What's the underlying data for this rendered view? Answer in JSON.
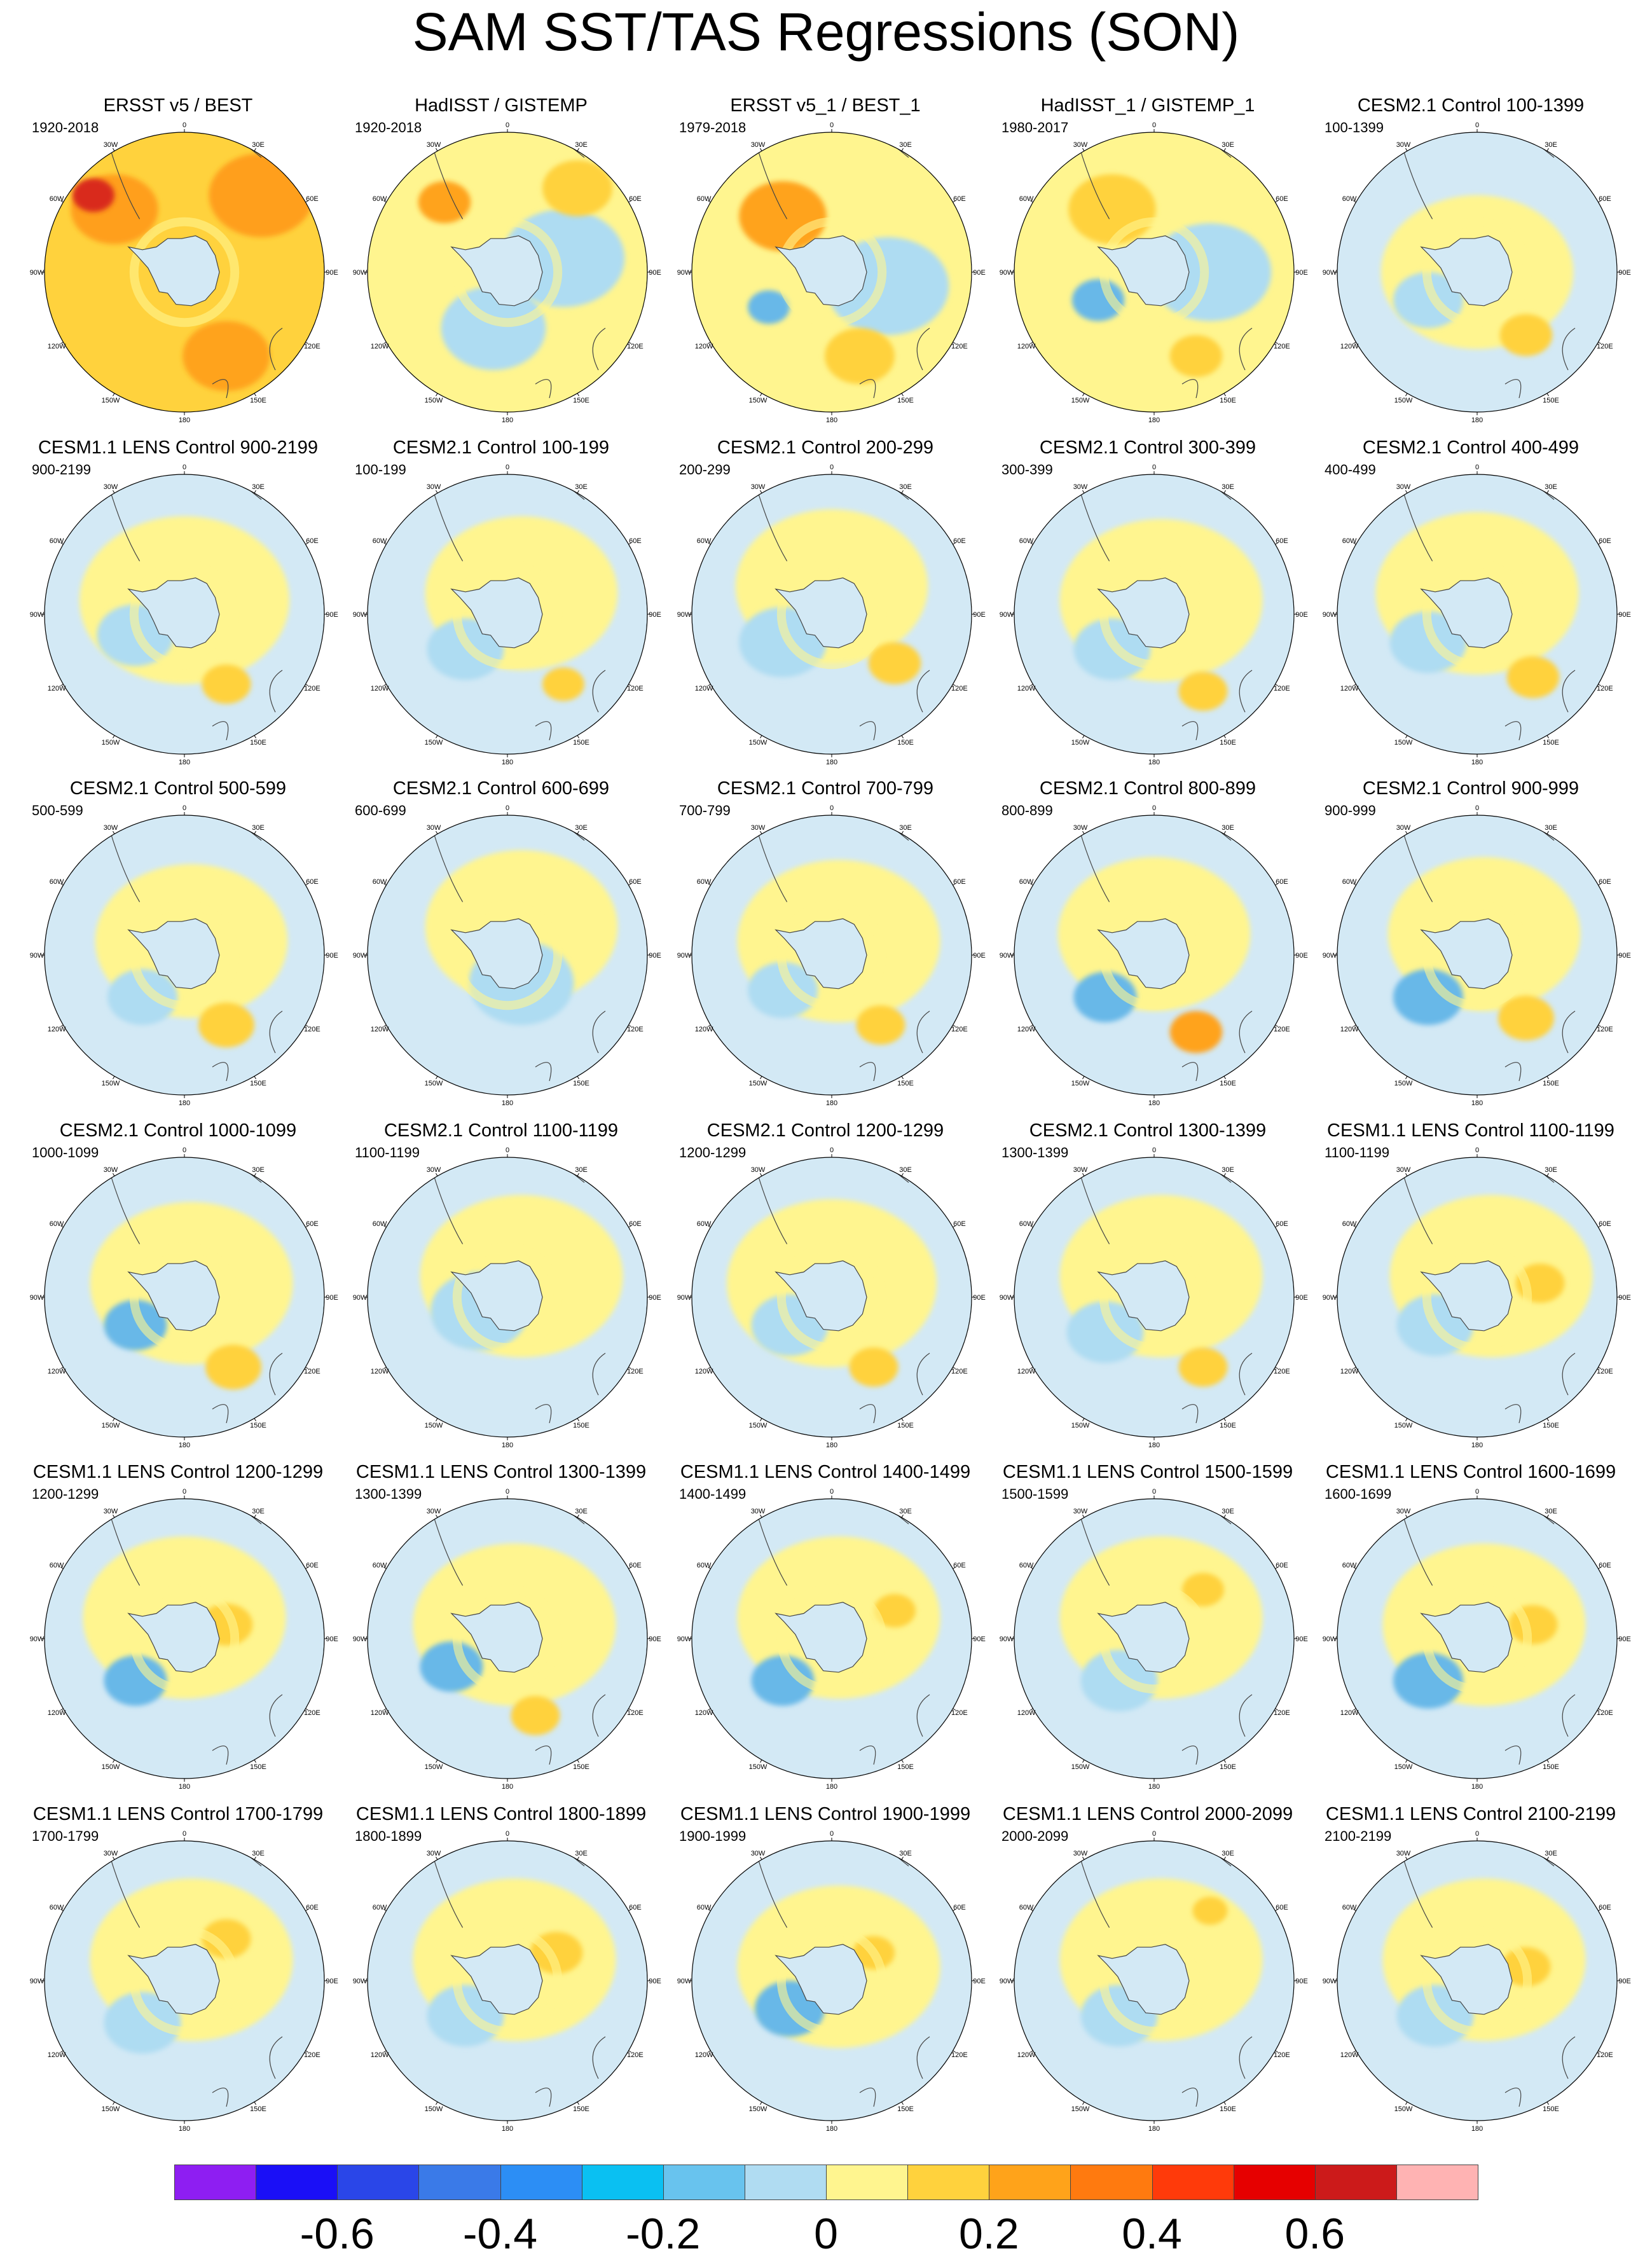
{
  "title": "SAM SST/TAS Regressions (SON)",
  "longitude_labels": [
    "0",
    "30E",
    "60E",
    "90E",
    "120E",
    "150E",
    "180",
    "150W",
    "120W",
    "90W",
    "60W",
    "30W"
  ],
  "colors": {
    "land": "#d3e9f5",
    "coast": "#444444"
  },
  "panels": [
    {
      "title": "ERSST v5 / BEST",
      "period": "1920-2018",
      "base": "#ffd23d",
      "blobs": [
        [
          "#ff9f1a",
          0.55,
          0.55,
          0.3
        ],
        [
          "#ff9f1a",
          -0.5,
          0.45,
          0.25
        ],
        [
          "#d92c1a",
          -0.65,
          0.55,
          0.12
        ],
        [
          "#ffa31a",
          0.3,
          -0.6,
          0.25
        ]
      ]
    },
    {
      "title": "HadISST / GISTEMP",
      "period": "1920-2018",
      "base": "#fff58f",
      "blobs": [
        [
          "#aedcf2",
          0.4,
          0.1,
          0.35
        ],
        [
          "#ffa31a",
          -0.45,
          0.5,
          0.15
        ],
        [
          "#aedcf2",
          -0.1,
          -0.4,
          0.3
        ],
        [
          "#ffd23d",
          0.5,
          0.6,
          0.2
        ]
      ]
    },
    {
      "title": "ERSST v5_1 / BEST_1",
      "period": "1979-2018",
      "base": "#fff58f",
      "blobs": [
        [
          "#ffa31a",
          -0.35,
          0.4,
          0.25
        ],
        [
          "#aedcf2",
          0.4,
          -0.1,
          0.35
        ],
        [
          "#68b8e8",
          -0.45,
          -0.25,
          0.12
        ],
        [
          "#ffd23d",
          0.2,
          -0.6,
          0.2
        ]
      ]
    },
    {
      "title": "HadISST_1 / GISTEMP_1",
      "period": "1980-2017",
      "base": "#fff58f",
      "blobs": [
        [
          "#ffd23d",
          -0.3,
          0.45,
          0.25
        ],
        [
          "#aedcf2",
          0.4,
          0.0,
          0.35
        ],
        [
          "#68b8e8",
          -0.4,
          -0.2,
          0.15
        ],
        [
          "#ffd23d",
          0.3,
          -0.6,
          0.15
        ]
      ]
    },
    {
      "title": "CESM2.1 Control 100-1399",
      "period": "100-1399",
      "base": "#d3e9f5",
      "blobs": [
        [
          "#fff58f",
          0.0,
          0.0,
          0.55
        ],
        [
          "#aedcf2",
          -0.35,
          -0.2,
          0.2
        ],
        [
          "#ffd23d",
          0.35,
          -0.45,
          0.15
        ]
      ]
    },
    {
      "title": "CESM1.1 LENS Control 900-2199",
      "period": "900-2199",
      "base": "#d3e9f5",
      "blobs": [
        [
          "#fff58f",
          0.0,
          0.1,
          0.6
        ],
        [
          "#aedcf2",
          -0.35,
          -0.15,
          0.22
        ],
        [
          "#ffd23d",
          0.3,
          -0.5,
          0.14
        ]
      ]
    },
    {
      "title": "CESM2.1 Control 100-199",
      "period": "100-199",
      "base": "#d3e9f5",
      "blobs": [
        [
          "#fff58f",
          0.1,
          0.15,
          0.55
        ],
        [
          "#aedcf2",
          -0.3,
          -0.25,
          0.22
        ],
        [
          "#ffd23d",
          0.4,
          -0.5,
          0.12
        ]
      ]
    },
    {
      "title": "CESM2.1 Control 200-299",
      "period": "200-299",
      "base": "#d3e9f5",
      "blobs": [
        [
          "#fff58f",
          0.0,
          0.2,
          0.55
        ],
        [
          "#aedcf2",
          -0.35,
          -0.2,
          0.25
        ],
        [
          "#ffd23d",
          0.45,
          -0.35,
          0.15
        ]
      ]
    },
    {
      "title": "CESM2.1 Control 300-399",
      "period": "300-399",
      "base": "#d3e9f5",
      "blobs": [
        [
          "#fff58f",
          0.05,
          0.1,
          0.58
        ],
        [
          "#aedcf2",
          -0.3,
          -0.25,
          0.22
        ],
        [
          "#ffd23d",
          0.35,
          -0.55,
          0.14
        ]
      ]
    },
    {
      "title": "CESM2.1 Control 400-499",
      "period": "400-499",
      "base": "#d3e9f5",
      "blobs": [
        [
          "#fff58f",
          0.0,
          0.15,
          0.58
        ],
        [
          "#aedcf2",
          -0.35,
          -0.2,
          0.22
        ],
        [
          "#ffd23d",
          0.4,
          -0.45,
          0.15
        ]
      ]
    },
    {
      "title": "CESM2.1 Control 500-599",
      "period": "500-599",
      "base": "#d3e9f5",
      "blobs": [
        [
          "#fff58f",
          0.05,
          0.1,
          0.55
        ],
        [
          "#aedcf2",
          -0.3,
          -0.3,
          0.2
        ],
        [
          "#ffd23d",
          0.3,
          -0.5,
          0.16
        ]
      ]
    },
    {
      "title": "CESM2.1 Control 600-699",
      "period": "600-699",
      "base": "#d3e9f5",
      "blobs": [
        [
          "#fff58f",
          0.1,
          0.2,
          0.55
        ],
        [
          "#aedcf2",
          0.1,
          -0.2,
          0.3
        ]
      ]
    },
    {
      "title": "CESM2.1 Control 700-799",
      "period": "700-799",
      "base": "#d3e9f5",
      "blobs": [
        [
          "#fff58f",
          0.05,
          0.1,
          0.58
        ],
        [
          "#aedcf2",
          -0.35,
          -0.25,
          0.2
        ],
        [
          "#ffd23d",
          0.35,
          -0.5,
          0.14
        ]
      ]
    },
    {
      "title": "CESM2.1 Control 800-899",
      "period": "800-899",
      "base": "#d3e9f5",
      "blobs": [
        [
          "#fff58f",
          0.0,
          0.15,
          0.55
        ],
        [
          "#68b8e8",
          -0.35,
          -0.3,
          0.18
        ],
        [
          "#ffa31a",
          0.3,
          -0.55,
          0.15
        ]
      ]
    },
    {
      "title": "CESM2.1 Control 900-999",
      "period": "900-999",
      "base": "#d3e9f5",
      "blobs": [
        [
          "#fff58f",
          0.05,
          0.15,
          0.55
        ],
        [
          "#68b8e8",
          -0.35,
          -0.3,
          0.2
        ],
        [
          "#ffd23d",
          0.35,
          -0.45,
          0.16
        ]
      ]
    },
    {
      "title": "CESM2.1 Control 1000-1099",
      "period": "1000-1099",
      "base": "#d3e9f5",
      "blobs": [
        [
          "#fff58f",
          0.05,
          0.1,
          0.58
        ],
        [
          "#68b8e8",
          -0.35,
          -0.2,
          0.18
        ],
        [
          "#ffd23d",
          0.35,
          -0.5,
          0.16
        ]
      ]
    },
    {
      "title": "CESM2.1 Control 1100-1199",
      "period": "1100-1199",
      "base": "#d3e9f5",
      "blobs": [
        [
          "#fff58f",
          0.1,
          0.15,
          0.58
        ],
        [
          "#aedcf2",
          -0.2,
          -0.1,
          0.28
        ]
      ]
    },
    {
      "title": "CESM2.1 Control 1200-1299",
      "period": "1200-1299",
      "base": "#d3e9f5",
      "blobs": [
        [
          "#fff58f",
          0.0,
          0.1,
          0.6
        ],
        [
          "#aedcf2",
          -0.3,
          -0.2,
          0.22
        ],
        [
          "#ffd23d",
          0.3,
          -0.5,
          0.14
        ]
      ]
    },
    {
      "title": "CESM2.1 Control 1300-1399",
      "period": "1300-1399",
      "base": "#d3e9f5",
      "blobs": [
        [
          "#fff58f",
          0.05,
          0.15,
          0.58
        ],
        [
          "#aedcf2",
          -0.35,
          -0.25,
          0.22
        ],
        [
          "#ffd23d",
          0.35,
          -0.5,
          0.14
        ]
      ]
    },
    {
      "title": "CESM1.1 LENS Control 1100-1199",
      "period": "1100-1199",
      "base": "#d3e9f5",
      "blobs": [
        [
          "#fff58f",
          0.1,
          0.15,
          0.58
        ],
        [
          "#ffd23d",
          0.45,
          0.1,
          0.14
        ],
        [
          "#aedcf2",
          -0.3,
          -0.2,
          0.22
        ]
      ]
    },
    {
      "title": "CESM1.1 LENS Control 1200-1299",
      "period": "1200-1299",
      "base": "#d3e9f5",
      "blobs": [
        [
          "#fff58f",
          0.0,
          0.15,
          0.58
        ],
        [
          "#68b8e8",
          -0.35,
          -0.3,
          0.18
        ],
        [
          "#ffd23d",
          0.3,
          0.1,
          0.15
        ]
      ]
    },
    {
      "title": "CESM1.1 LENS Control 1300-1399",
      "period": "1300-1399",
      "base": "#d3e9f5",
      "blobs": [
        [
          "#fff58f",
          0.05,
          0.1,
          0.58
        ],
        [
          "#68b8e8",
          -0.4,
          -0.2,
          0.18
        ],
        [
          "#ffd23d",
          0.2,
          -0.55,
          0.14
        ]
      ]
    },
    {
      "title": "CESM1.1 LENS Control 1400-1499",
      "period": "1400-1499",
      "base": "#d3e9f5",
      "blobs": [
        [
          "#fff58f",
          0.05,
          0.15,
          0.58
        ],
        [
          "#68b8e8",
          -0.35,
          -0.3,
          0.18
        ],
        [
          "#ffd23d",
          0.45,
          0.2,
          0.12
        ]
      ]
    },
    {
      "title": "CESM1.1 LENS Control 1500-1599",
      "period": "1500-1599",
      "base": "#d3e9f5",
      "blobs": [
        [
          "#fff58f",
          0.05,
          0.15,
          0.58
        ],
        [
          "#aedcf2",
          -0.25,
          -0.3,
          0.22
        ],
        [
          "#ffd23d",
          0.35,
          0.35,
          0.12
        ]
      ]
    },
    {
      "title": "CESM1.1 LENS Control 1600-1699",
      "period": "1600-1699",
      "base": "#d3e9f5",
      "blobs": [
        [
          "#fff58f",
          0.05,
          0.1,
          0.58
        ],
        [
          "#68b8e8",
          -0.35,
          -0.3,
          0.2
        ],
        [
          "#ffd23d",
          0.4,
          0.1,
          0.14
        ]
      ]
    },
    {
      "title": "CESM1.1 LENS Control 1700-1799",
      "period": "1700-1799",
      "base": "#d3e9f5",
      "blobs": [
        [
          "#fff58f",
          0.05,
          0.15,
          0.58
        ],
        [
          "#aedcf2",
          -0.3,
          -0.3,
          0.22
        ],
        [
          "#ffd23d",
          0.3,
          0.3,
          0.14
        ]
      ]
    },
    {
      "title": "CESM1.1 LENS Control 1800-1899",
      "period": "1800-1899",
      "base": "#d3e9f5",
      "blobs": [
        [
          "#fff58f",
          0.05,
          0.15,
          0.58
        ],
        [
          "#aedcf2",
          -0.3,
          -0.25,
          0.22
        ],
        [
          "#ffd23d",
          0.35,
          0.2,
          0.15
        ]
      ]
    },
    {
      "title": "CESM1.1 LENS Control 1900-1999",
      "period": "1900-1999",
      "base": "#d3e9f5",
      "blobs": [
        [
          "#fff58f",
          0.05,
          0.1,
          0.58
        ],
        [
          "#68b8e8",
          -0.3,
          -0.2,
          0.2
        ],
        [
          "#ffd23d",
          0.3,
          0.2,
          0.12
        ]
      ]
    },
    {
      "title": "CESM1.1 LENS Control 2000-2099",
      "period": "2000-2099",
      "base": "#d3e9f5",
      "blobs": [
        [
          "#fff58f",
          0.05,
          0.15,
          0.58
        ],
        [
          "#aedcf2",
          -0.25,
          -0.25,
          0.22
        ],
        [
          "#ffd23d",
          0.4,
          0.5,
          0.1
        ]
      ]
    },
    {
      "title": "CESM1.1 LENS Control 2100-2199",
      "period": "2100-2199",
      "base": "#d3e9f5",
      "blobs": [
        [
          "#fff58f",
          0.05,
          0.15,
          0.58
        ],
        [
          "#aedcf2",
          -0.3,
          -0.25,
          0.22
        ],
        [
          "#ffd23d",
          0.35,
          0.1,
          0.14
        ]
      ]
    }
  ],
  "colorbar": {
    "colors": [
      "#8e1ef2",
      "#1a0ff7",
      "#2a46e8",
      "#3a7ae8",
      "#2c8ef5",
      "#0ac0f2",
      "#68c3ee",
      "#b0dcf2",
      "#fff58f",
      "#ffd23d",
      "#ffa31a",
      "#ff7a0f",
      "#ff3a0a",
      "#e60000",
      "#cc1a1a",
      "#ffb3b3"
    ],
    "ticks": [
      {
        "label": "-0.6",
        "index": 2
      },
      {
        "label": "-0.4",
        "index": 4
      },
      {
        "label": "-0.2",
        "index": 6
      },
      {
        "label": "0",
        "index": 8
      },
      {
        "label": "0.2",
        "index": 10
      },
      {
        "label": "0.4",
        "index": 12
      },
      {
        "label": "0.6",
        "index": 14
      }
    ]
  }
}
